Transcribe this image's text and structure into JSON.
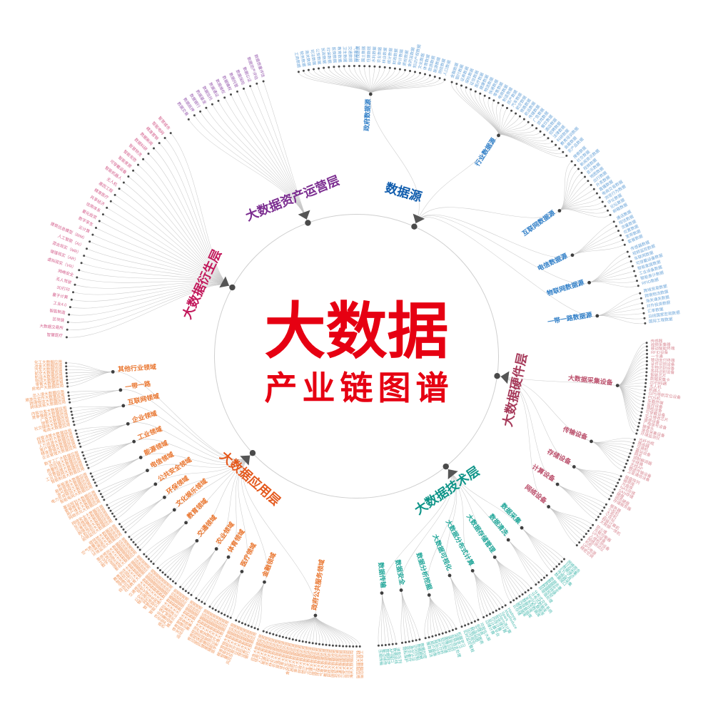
{
  "center": {
    "title": "大数据",
    "subtitle": "产业链图谱",
    "color": "#e60012"
  },
  "chart_data": {
    "type": "radial-tree",
    "title": "大数据产业链图谱",
    "branches": [
      {
        "name": "大数据资产运营层",
        "color": "#7b2d90",
        "leaf_color": "#9a5fb0",
        "leaves": [
          "数据交易",
          "数据抵押",
          "数据银行",
          "数据基金",
          "数据信托",
          "数据通证",
          "数据维权",
          "数据确权",
          "数据托管",
          "数据保险",
          "数据公证",
          "数据资产评估",
          "数据质量评估"
        ]
      },
      {
        "name": "数据源",
        "color": "#0f5cad",
        "sub_color": "#2f7ec7",
        "leaf_color": "#6ea6d9",
        "children": [
          {
            "name": "政府数据源",
            "leaves": [
              "工商数据",
              "税务数据",
              "海关数据",
              "司法数据",
              "公安数据",
              "民政数据",
              "社保数据",
              "医保数据",
              "教育数据",
              "卫生数据",
              "交通数据",
              "气象数据",
              "环保数据",
              "国土数据",
              "住建数据",
              "水利数据",
              "农业数据",
              "林业数据",
              "统计数据",
              "财政数据",
              "审计数据",
              "质检数据",
              "食药监数据",
              "知识产权数据",
              "文化数据",
              "体育数据",
              "旅游数据",
              "能源数据",
              "测绘数据",
              "人口数据"
            ]
          },
          {
            "name": "行业数据源",
            "leaves": [
              "金融数据",
              "银行数据",
              "证券数据",
              "保险数据",
              "征信数据",
              "医疗数据",
              "健康数据",
              "物流数据",
              "快递数据",
              "零售数据",
              "电商数据",
              "制造数据",
              "房产数据",
              "汽车数据",
              "航空数据",
              "铁路数据",
              "航运数据",
              "传媒数据",
              "广告数据",
              "游戏数据",
              "餐饮数据",
              "酒店数据",
              "招聘数据",
              "法律数据",
              "科研数据",
              "教育培训数据",
              "会展数据",
              "农产品数据"
            ]
          },
          {
            "name": "互联网数据源",
            "leaves": [
              "搜索数据",
              "社交数据",
              "新闻资讯数据",
              "视频数据",
              "音乐数据",
              "地图数据",
              "出行数据",
              "外卖数据",
              "直播数据",
              "电商交易数据",
              "浏览行为数据",
              "评论数据",
              "论坛数据",
              "邮箱数据"
            ]
          },
          {
            "name": "电信数据源",
            "leaves": [
              "通话数据",
              "短信数据",
              "流量数据",
              "位置数据",
              "宽带数据",
              "套餐数据"
            ]
          },
          {
            "name": "物联网数据源",
            "leaves": [
              "传感器数据",
              "视频监控数据",
              "车联网数据",
              "可穿戴设备数据",
              "智能家居数据",
              "工业设备数据",
              "智能表计数据",
              "RFID数据"
            ]
          },
          {
            "name": "一带一路数据源",
            "leaves": [
              "跨境贸易数据",
              "跨境物流数据",
              "海关通关数据",
              "对外投资数据",
              "汇率数据",
              "沿线国家宏观数据",
              "国际工程数据"
            ]
          }
        ]
      },
      {
        "name": "大数据硬件层",
        "color": "#a63a5a",
        "sub_color": "#bb4f6b",
        "leaf_color": "#d98c96",
        "children": [
          {
            "name": "大数据采集设备",
            "leaves": [
              "传感器",
              "视频采集器",
              "移动智能终端",
              "RFID设备",
              "一卡通",
              "移动支付终端",
              "证件识别设备",
              "生物识别设备",
              "条码识别设备",
              "智能芯片",
              "数据采集卡",
              "2D扫码器",
              "无人机",
              "机器人",
              "GPS导航定位设备",
              "POS机",
              "车载终端",
              "监控设备",
              "测绘设备",
              "可穿戴设备",
              "北斗接收芯片",
              "遥感设备",
              "广电信号设备",
              "摄像头",
              "录音采集设备",
              "环境监测仪"
            ]
          },
          {
            "name": "传输设备",
            "leaves": [
              "光纤光缆",
              "路由器",
              "交换机",
              "基站设备",
              "网关",
              "调制解调器",
              "中继器",
              "无线AP",
              "微波传输设备",
              "卫星通信设备"
            ]
          },
          {
            "name": "存储设备",
            "leaves": [
              "磁盘阵列",
              "磁带库",
              "光盘库",
              "NAS存储",
              "SAN存储",
              "硬盘",
              "固态硬盘",
              "存储服务器"
            ]
          },
          {
            "name": "计算设备",
            "leaves": [
              "服务器",
              "小型机",
              "大型机",
              "工作站",
              "超级计算机",
              "大数据一体机"
            ]
          },
          {
            "name": "网络设备",
            "leaves": [
              "防火墙",
              "负载均衡器",
              "VPN设备",
              "入侵检测设备",
              "网络测试仪",
              "机柜",
              "UPS电源",
              "精密空调"
            ]
          }
        ]
      },
      {
        "name": "大数据技术层",
        "color": "#0e9488",
        "sub_color": "#23a79a",
        "leaf_color": "#52bdb3",
        "children": [
          {
            "name": "数据采集",
            "leaves": [
              "网络爬虫",
              "日志采集",
              "数据埋点",
              "ETL工具",
              "传感器采集",
              "数据接口"
            ]
          },
          {
            "name": "数据清洗",
            "leaves": [
              "数据去重",
              "数据补全",
              "数据转换",
              "数据校验",
              "异常值处理"
            ]
          },
          {
            "name": "大数据存储管理",
            "leaves": [
              "分布式文件系统",
              "分布式数据库",
              "NoSQL数据库",
              "关系型数据库",
              "数据仓库",
              "内存数据库",
              "图数据库",
              "云存储"
            ]
          },
          {
            "name": "大数据分布式计算",
            "leaves": [
              "Hadoop",
              "MapReduce",
              "Spark",
              "Storm流计算",
              "批处理计算",
              "内存计算",
              "云计算平台",
              "边缘计算"
            ]
          },
          {
            "name": "大数据可视化",
            "leaves": [
              "可视化大屏",
              "BI报表",
              "交互式图表",
              "数据地图",
              "3D可视化",
              "实时监控看板"
            ]
          },
          {
            "name": "数据分析挖掘",
            "leaves": [
              "机器学习",
              "深度学习",
              "自然语言处理",
              "语音识别",
              "图像识别",
              "知识图谱",
              "统计分析",
              "预测分析",
              "用户画像",
              "推荐算法"
            ]
          },
          {
            "name": "数据安全",
            "leaves": [
              "数据加密",
              "数据脱敏",
              "访问控制",
              "身份认证",
              "容灾备份",
              "隐私保护"
            ]
          },
          {
            "name": "数据传输",
            "leaves": [
              "消息队列",
              "数据总线",
              "API接口",
              "数据同步",
              "断点续传",
              "压缩传输"
            ]
          }
        ]
      },
      {
        "name": "大数据应用层",
        "color": "#e4581c",
        "sub_color": "#e9752e",
        "leaf_color": "#f09c66",
        "children": [
          {
            "name": "政府公共服务领域",
            "leaves": [
              "工商大数据应用",
              "税务大数据应用",
              "海关大数据应用",
              "司法大数据应用",
              "公安大数据应用",
              "交通大数据应用",
              "社保大数据应用",
              "医保大数据应用",
              "民政大数据应用",
              "教育大数据应用",
              "气象大数据应用",
              "环保大数据应用",
              "国土大数据应用",
              "住建大数据应用",
              "卫生大数据应用",
              "统计大数据应用",
              "财政大数据应用",
              "审计大数据应用",
              "质检大数据应用",
              "食药监大数据应用",
              "文化大数据应用",
              "体育大数据应用",
              "旅游大数据应用",
              "农业大数据应用",
              "林业大数据应用",
              "水利大数据应用",
              "能源大数据应用",
              "人口大数据应用",
              "信用大数据应用",
              "应急大数据应用"
            ]
          },
          {
            "name": "金融领域",
            "leaves": [
              "银行大数据应用",
              "证券大数据应用",
              "保险大数据应用",
              "征信大数据应用",
              "风控反欺诈大数据应用",
              "量化投资大数据应用",
              "智能投顾大数据应用",
              "精准营销大数据应用"
            ]
          },
          {
            "name": "医疗领域",
            "leaves": [
              "医学影像大数据应用",
              "辅助诊疗大数据应用",
              "基因测序大数据应用",
              "健康管理大数据应用",
              "药物研发大数据应用",
              "医保控费大数据应用",
              "远程医疗大数据应用",
              "疾病预测大数据应用"
            ]
          },
          {
            "name": "体育领域",
            "leaves": [
              "赛事大数据应用",
              "运动员训练大数据应用",
              "全民健身大数据应用",
              "体育营销大数据应用"
            ]
          },
          {
            "name": "农业领域",
            "leaves": [
              "精准农业大数据应用",
              "农产品溯源大数据应用",
              "病虫害预测大数据应用",
              "农业气象大数据应用",
              "农业保险大数据应用"
            ]
          },
          {
            "name": "交通领域",
            "leaves": [
              "智能交通大数据应用",
              "车联网大数据应用",
              "智慧停车大数据应用",
              "网约车大数据应用",
              "物流调度大数据应用",
              "公交优化大数据应用",
              "导航大数据应用",
              "交通预测大数据应用"
            ]
          },
          {
            "name": "教育领域",
            "leaves": [
              "在线教育大数据应用",
              "自适应学习大数据应用",
              "学情分析大数据应用",
              "智慧校园大数据应用",
              "教育测评大数据应用"
            ]
          },
          {
            "name": "文化娱乐领域",
            "leaves": [
              "影视大数据应用",
              "游戏大数据应用",
              "音乐大数据应用",
              "数字出版大数据应用",
              "文化旅游大数据应用",
              "票房预测大数据应用"
            ]
          },
          {
            "name": "环保领域",
            "leaves": [
              "环境监测大数据应用",
              "污染溯源大数据应用",
              "空气质量预测大数据应用",
              "碳排放大数据应用"
            ]
          },
          {
            "name": "公共安全领域",
            "leaves": [
              "视频监控大数据应用",
              "人脸识别大数据应用",
              "舆情监测大数据应用",
              "灾害预警大数据应用",
              "反恐维稳大数据应用",
              "网络安全大数据应用"
            ]
          },
          {
            "name": "电信领域",
            "leaves": [
              "网络优化大数据应用",
              "用户维系大数据应用",
              "套餐推荐大数据应用",
              "基站规划大数据应用"
            ]
          },
          {
            "name": "能源领域",
            "leaves": [
              "智能电网大数据应用",
              "电力负荷预测大数据应用",
              "油气勘探大数据应用",
              "能耗管理大数据应用",
              "新能源大数据应用"
            ]
          },
          {
            "name": "工业领域",
            "leaves": [
              "智能制造大数据应用",
              "工业互联网大数据应用",
              "设备运维大数据应用",
              "质量检测大数据应用",
              "供应链大数据应用",
              "数字工厂大数据应用"
            ]
          },
          {
            "name": "企业领域",
            "leaves": [
              "企业管理大数据应用",
              "精准营销大数据应用",
              "客户管理大数据应用",
              "人力资源大数据应用",
              "财务分析大数据应用",
              "经营决策大数据应用"
            ]
          },
          {
            "name": "互联网领域",
            "leaves": [
              "电商大数据应用",
              "社交媒体大数据应用",
              "搜索大数据应用",
              "广告大数据应用",
              "竞争情报大数据应用",
              "内容分发大数据应用"
            ]
          },
          {
            "name": "一带一路",
            "leaves": [
              "跨境贸易大数据应用",
              "跨境物流大数据应用",
              "港澳台合作大数据应用",
              "出入境大数据应用"
            ]
          },
          {
            "name": "其他行业领域",
            "leaves": [
              "房地产大数据应用",
              "零售大数据应用",
              "物流大数据应用",
              "航运大数据应用",
              "航空大数据应用",
              "汽车大数据应用",
              "冶金大数据应用",
              "化工大数据应用"
            ]
          }
        ]
      },
      {
        "name": "大数据衍生层",
        "color": "#c2185b",
        "leaf_color": "#d4608d",
        "leaves": [
          "智慧医疗",
          "大数据交易所",
          "区块链",
          "智能制造",
          "工业4.0",
          "量子计算",
          "3D打印",
          "无人驾驶",
          "网络安全",
          "虚拟现实（VR）",
          "增强现实（AR）",
          "混合现实（MR）",
          "人工智能（AI）",
          "建筑信息模型（BIM）",
          "云计算",
          "数字孪生",
          "量化投资",
          "信用体系",
          "共享经济",
          "精准医疗",
          "基因工程",
          "无人机",
          "智能机器人",
          "可穿戴设备",
          "智能家居",
          "智能安防",
          "智慧物流",
          "数据科研",
          "数据新闻",
          "精准营销",
          "智能电网",
          "智慧城市"
        ]
      }
    ]
  }
}
